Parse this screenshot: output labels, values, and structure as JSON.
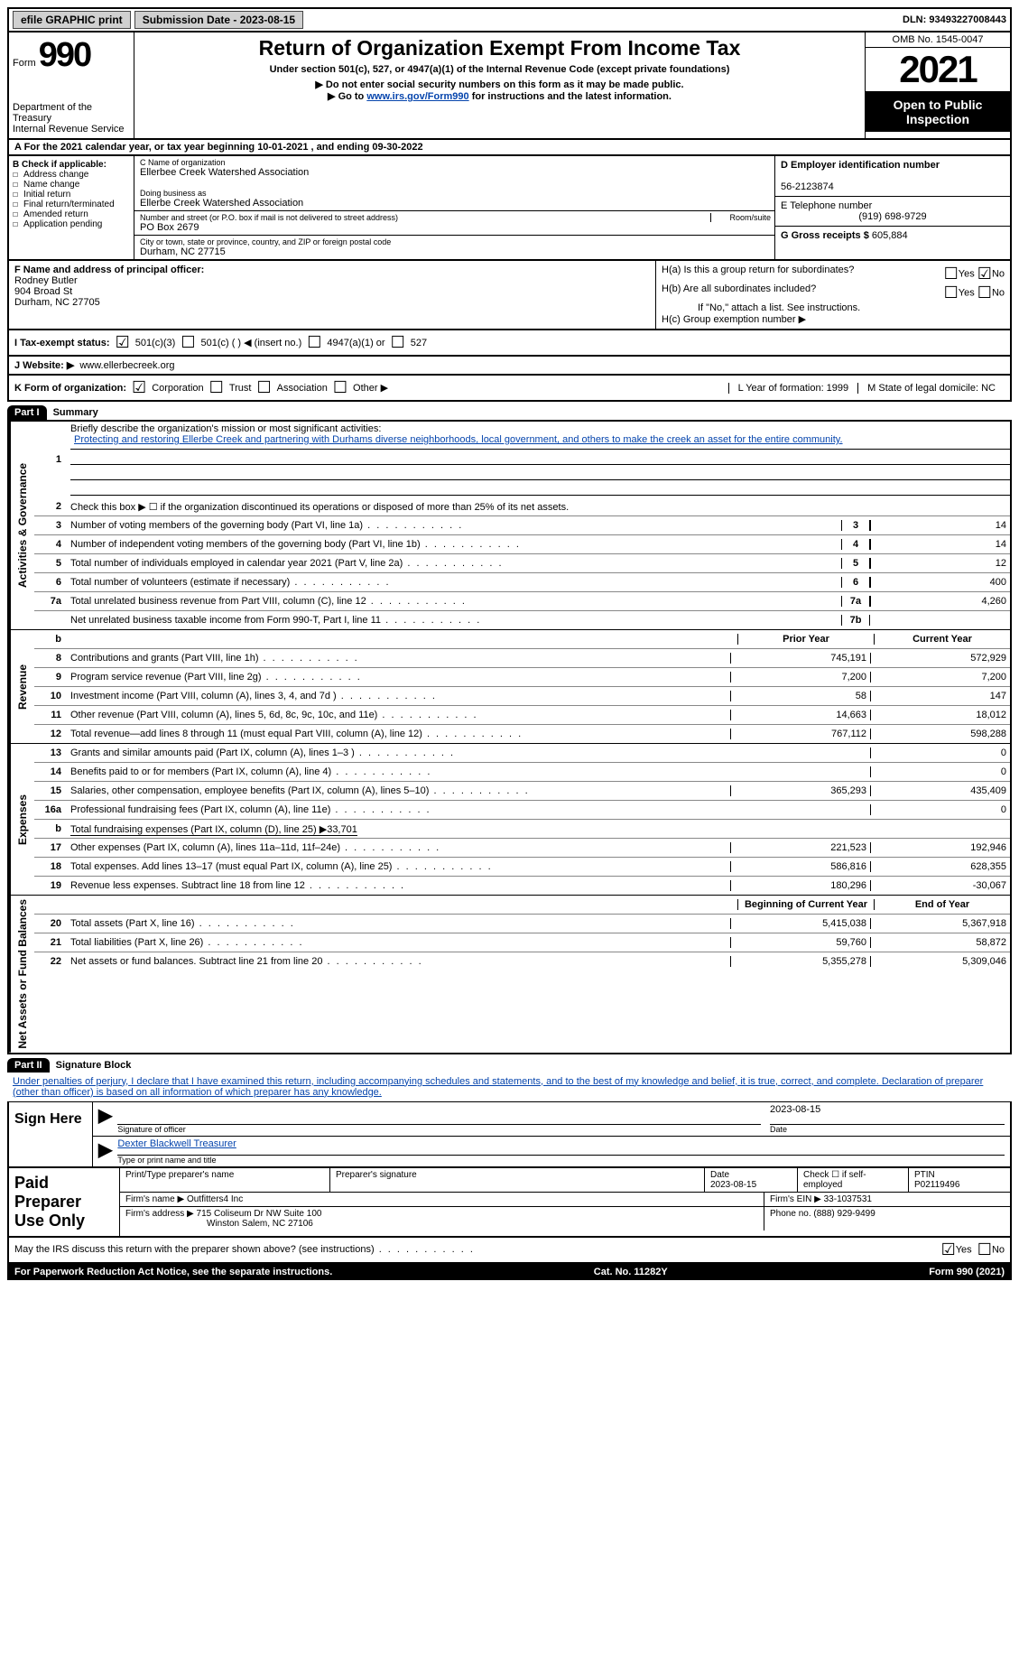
{
  "topbar": {
    "efile": "efile GRAPHIC print",
    "submission": "Submission Date - 2023-08-15",
    "dln": "DLN: 93493227008443"
  },
  "header": {
    "form_prefix": "Form",
    "form_num": "990",
    "dept": "Department of the Treasury\nInternal Revenue Service",
    "title": "Return of Organization Exempt From Income Tax",
    "subtitle": "Under section 501(c), 527, or 4947(a)(1) of the Internal Revenue Code (except private foundations)",
    "instr1": "Do not enter social security numbers on this form as it may be made public.",
    "instr2_pre": "Go to ",
    "instr2_link": "www.irs.gov/Form990",
    "instr2_post": " for instructions and the latest information.",
    "omb": "OMB No. 1545-0047",
    "year": "2021",
    "inspect": "Open to Public Inspection"
  },
  "rowA": {
    "text": "A For the 2021 calendar year, or tax year beginning 10-01-2021   , and ending 09-30-2022"
  },
  "boxB": {
    "label": "B Check if applicable:",
    "items": [
      "Address change",
      "Name change",
      "Initial return",
      "Final return/terminated",
      "Amended return",
      "Application pending"
    ]
  },
  "boxC": {
    "name_label": "C Name of organization",
    "name": "Ellerbee Creek Watershed Association",
    "dba_label": "Doing business as",
    "dba": "Ellerbe Creek Watershed Association",
    "addr_label": "Number and street (or P.O. box if mail is not delivered to street address)",
    "room": "Room/suite",
    "addr": "PO Box 2679",
    "city_label": "City or town, state or province, country, and ZIP or foreign postal code",
    "city": "Durham, NC  27715"
  },
  "boxD": {
    "label": "D Employer identification number",
    "val": "56-2123874"
  },
  "boxE": {
    "label": "E Telephone number",
    "val": "(919) 698-9729"
  },
  "boxG": {
    "label": "G Gross receipts $",
    "val": "605,884"
  },
  "boxF": {
    "label": "F  Name and address of principal officer:",
    "name": "Rodney Butler",
    "addr1": "904 Broad St",
    "addr2": "Durham, NC  27705"
  },
  "boxH": {
    "a": "H(a)  Is this a group return for subordinates?",
    "b": "H(b)  Are all subordinates included?",
    "b_note": "If \"No,\" attach a list. See instructions.",
    "c": "H(c)  Group exemption number ▶"
  },
  "boxI": {
    "label": "I   Tax-exempt status:",
    "opts": [
      "501(c)(3)",
      "501(c) (  ) ◀ (insert no.)",
      "4947(a)(1) or",
      "527"
    ]
  },
  "boxJ": {
    "label": "J   Website: ▶",
    "val": "  www.ellerbecreek.org"
  },
  "boxK": {
    "label": "K Form of organization:",
    "opts": [
      "Corporation",
      "Trust",
      "Association",
      "Other ▶"
    ],
    "L": "L Year of formation: 1999",
    "M": "M State of legal domicile: NC"
  },
  "part1": {
    "header": "Part I",
    "title": "Summary",
    "line1_label": "Briefly describe the organization's mission or most significant activities:",
    "mission": "Protecting and restoring Ellerbe Creek and partnering with Durhams diverse neighborhoods, local government, and others to make the creek an asset for the entire community.",
    "line2": "Check this box ▶ ☐ if the organization discontinued its operations or disposed of more than 25% of its net assets.",
    "gov_lines": [
      {
        "n": "3",
        "d": "Number of voting members of the governing body (Part VI, line 1a)",
        "b": "3",
        "v": "14"
      },
      {
        "n": "4",
        "d": "Number of independent voting members of the governing body (Part VI, line 1b)",
        "b": "4",
        "v": "14"
      },
      {
        "n": "5",
        "d": "Total number of individuals employed in calendar year 2021 (Part V, line 2a)",
        "b": "5",
        "v": "12"
      },
      {
        "n": "6",
        "d": "Total number of volunteers (estimate if necessary)",
        "b": "6",
        "v": "400"
      },
      {
        "n": "7a",
        "d": "Total unrelated business revenue from Part VIII, column (C), line 12",
        "b": "7a",
        "v": "4,260"
      },
      {
        "n": "",
        "d": "Net unrelated business taxable income from Form 990-T, Part I, line 11",
        "b": "7b",
        "v": ""
      }
    ],
    "prior": "Prior Year",
    "current": "Current Year",
    "rev_lines": [
      {
        "n": "8",
        "d": "Contributions and grants (Part VIII, line 1h)",
        "p": "745,191",
        "c": "572,929"
      },
      {
        "n": "9",
        "d": "Program service revenue (Part VIII, line 2g)",
        "p": "7,200",
        "c": "7,200"
      },
      {
        "n": "10",
        "d": "Investment income (Part VIII, column (A), lines 3, 4, and 7d )",
        "p": "58",
        "c": "147"
      },
      {
        "n": "11",
        "d": "Other revenue (Part VIII, column (A), lines 5, 6d, 8c, 9c, 10c, and 11e)",
        "p": "14,663",
        "c": "18,012"
      },
      {
        "n": "12",
        "d": "Total revenue—add lines 8 through 11 (must equal Part VIII, column (A), line 12)",
        "p": "767,112",
        "c": "598,288"
      }
    ],
    "exp_lines": [
      {
        "n": "13",
        "d": "Grants and similar amounts paid (Part IX, column (A), lines 1–3 )",
        "p": "",
        "c": "0"
      },
      {
        "n": "14",
        "d": "Benefits paid to or for members (Part IX, column (A), line 4)",
        "p": "",
        "c": "0"
      },
      {
        "n": "15",
        "d": "Salaries, other compensation, employee benefits (Part IX, column (A), lines 5–10)",
        "p": "365,293",
        "c": "435,409"
      },
      {
        "n": "16a",
        "d": "Professional fundraising fees (Part IX, column (A), line 11e)",
        "p": "",
        "c": "0"
      },
      {
        "n": "b",
        "d": "Total fundraising expenses (Part IX, column (D), line 25) ▶33,701",
        "p": "shade",
        "c": "shade"
      },
      {
        "n": "17",
        "d": "Other expenses (Part IX, column (A), lines 11a–11d, 11f–24e)",
        "p": "221,523",
        "c": "192,946"
      },
      {
        "n": "18",
        "d": "Total expenses. Add lines 13–17 (must equal Part IX, column (A), line 25)",
        "p": "586,816",
        "c": "628,355"
      },
      {
        "n": "19",
        "d": "Revenue less expenses. Subtract line 18 from line 12",
        "p": "180,296",
        "c": "-30,067"
      }
    ],
    "begin": "Beginning of Current Year",
    "end": "End of Year",
    "net_lines": [
      {
        "n": "20",
        "d": "Total assets (Part X, line 16)",
        "p": "5,415,038",
        "c": "5,367,918"
      },
      {
        "n": "21",
        "d": "Total liabilities (Part X, line 26)",
        "p": "59,760",
        "c": "58,872"
      },
      {
        "n": "22",
        "d": "Net assets or fund balances. Subtract line 21 from line 20",
        "p": "5,355,278",
        "c": "5,309,046"
      }
    ]
  },
  "part2": {
    "header": "Part II",
    "title": "Signature Block",
    "decl": "Under penalties of perjury, I declare that I have examined this return, including accompanying schedules and statements, and to the best of my knowledge and belief, it is true, correct, and complete. Declaration of preparer (other than officer) is based on all information of which preparer has any knowledge.",
    "sign_here": "Sign Here",
    "sig_officer": "Signature of officer",
    "sig_date": "2023-08-15",
    "date_lbl": "Date",
    "officer_name": "Dexter Blackwell  Treasurer",
    "type_name": "Type or print name and title",
    "paid_prep": "Paid Preparer Use Only",
    "prep_name_lbl": "Print/Type preparer's name",
    "prep_sig_lbl": "Preparer's signature",
    "prep_date_lbl": "Date",
    "prep_date": "2023-08-15",
    "check_self": "Check ☐ if self-employed",
    "ptin_lbl": "PTIN",
    "ptin": "P02119496",
    "firm_name_lbl": "Firm's name    ▶",
    "firm_name": "Outfitters4 Inc",
    "firm_ein_lbl": "Firm's EIN ▶",
    "firm_ein": "33-1037531",
    "firm_addr_lbl": "Firm's address ▶",
    "firm_addr1": "715 Coliseum Dr NW Suite 100",
    "firm_addr2": "Winston Salem, NC  27106",
    "phone_lbl": "Phone no.",
    "phone": "(888) 929-9499",
    "discuss": "May the IRS discuss this return with the preparer shown above? (see instructions)",
    "paperwork": "For Paperwork Reduction Act Notice, see the separate instructions.",
    "cat": "Cat. No. 11282Y",
    "form_foot": "Form 990 (2021)"
  },
  "tabs": {
    "gov": "Activities & Governance",
    "rev": "Revenue",
    "exp": "Expenses",
    "net": "Net Assets or Fund Balances"
  }
}
